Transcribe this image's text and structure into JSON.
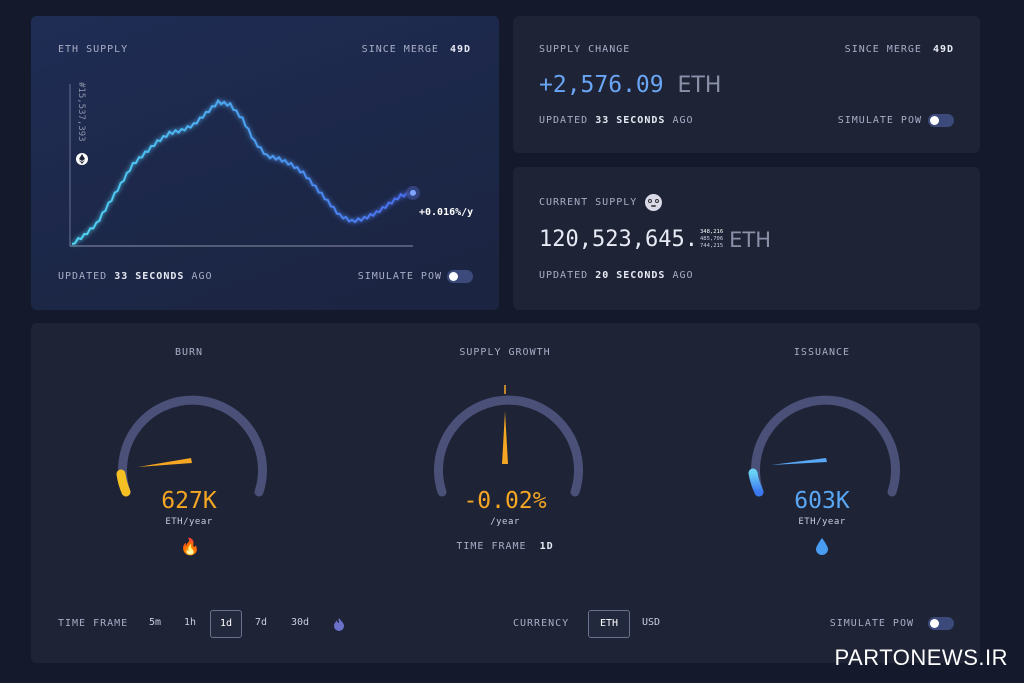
{
  "eth_supply_card": {
    "title": "ETH SUPPLY",
    "since_merge_label": "SINCE MERGE",
    "since_merge_value": "49d",
    "block_label": "#15,537,393",
    "rate_label": "+0.016%/y",
    "updated_prefix": "UPDATED",
    "updated_value": "33 SECONDS",
    "updated_suffix": "AGO",
    "simulate_label": "SIMULATE PoW"
  },
  "supply_change_card": {
    "title": "SUPPLY CHANGE",
    "since_merge_label": "SINCE MERGE",
    "since_merge_value": "49d",
    "value": "+2,576.09",
    "unit": "ETH",
    "updated_prefix": "UPDATED",
    "updated_value": "33 SECONDS",
    "updated_suffix": "AGO",
    "simulate_label": "SIMULATE PoW"
  },
  "current_supply_card": {
    "title": "CURRENT SUPPLY",
    "value_main": "120,523,645.",
    "decimals_line1": "348,216",
    "decimals_line2": "485,706",
    "decimals_line3": "744,215",
    "unit": "ETH",
    "updated_prefix": "UPDATED",
    "updated_value": "20 SECONDS",
    "updated_suffix": "AGO"
  },
  "gauges": {
    "burn": {
      "title": "BURN",
      "value": "627K",
      "unit": "ETH/year",
      "color": "#f5a623",
      "icon": "fire-icon"
    },
    "supply_growth": {
      "title": "SUPPLY GROWTH",
      "value": "-0.02%",
      "unit": "/year",
      "color": "#f5a623",
      "timeframe_label": "TIME FRAME",
      "timeframe_value": "1d"
    },
    "issuance": {
      "title": "ISSUANCE",
      "value": "603K",
      "unit": "ETH/year",
      "color": "#5aa8f5",
      "icon": "droplet-icon"
    }
  },
  "controls": {
    "timeframe_label": "TIME FRAME",
    "timeframes": [
      "5m",
      "1h",
      "1d",
      "7d",
      "30d"
    ],
    "active_timeframe": "1d",
    "currency_label": "CURRENCY",
    "currencies": [
      "ETH",
      "USD"
    ],
    "active_currency": "ETH",
    "simulate_label": "SIMULATE PoW"
  },
  "watermark": "PARTONEWS.IR",
  "colors": {
    "accent_blue": "#5aa8f5",
    "line_cyan": "#3fc2f0",
    "burn_orange": "#f5a623",
    "card_bg": "#1e2336",
    "page_bg": "#141a2c"
  },
  "chart_data": {
    "type": "line",
    "title": "ETH SUPPLY",
    "series": [
      {
        "values": [
          0,
          6,
          14,
          28,
          42,
          56,
          64,
          72,
          78,
          80,
          84,
          92,
          100,
          98,
          88,
          72,
          62,
          60,
          56,
          50,
          40,
          30,
          20,
          16,
          18,
          22,
          28,
          34,
          36
        ]
      }
    ],
    "annotation": "+0.016%/y",
    "grid": false
  }
}
